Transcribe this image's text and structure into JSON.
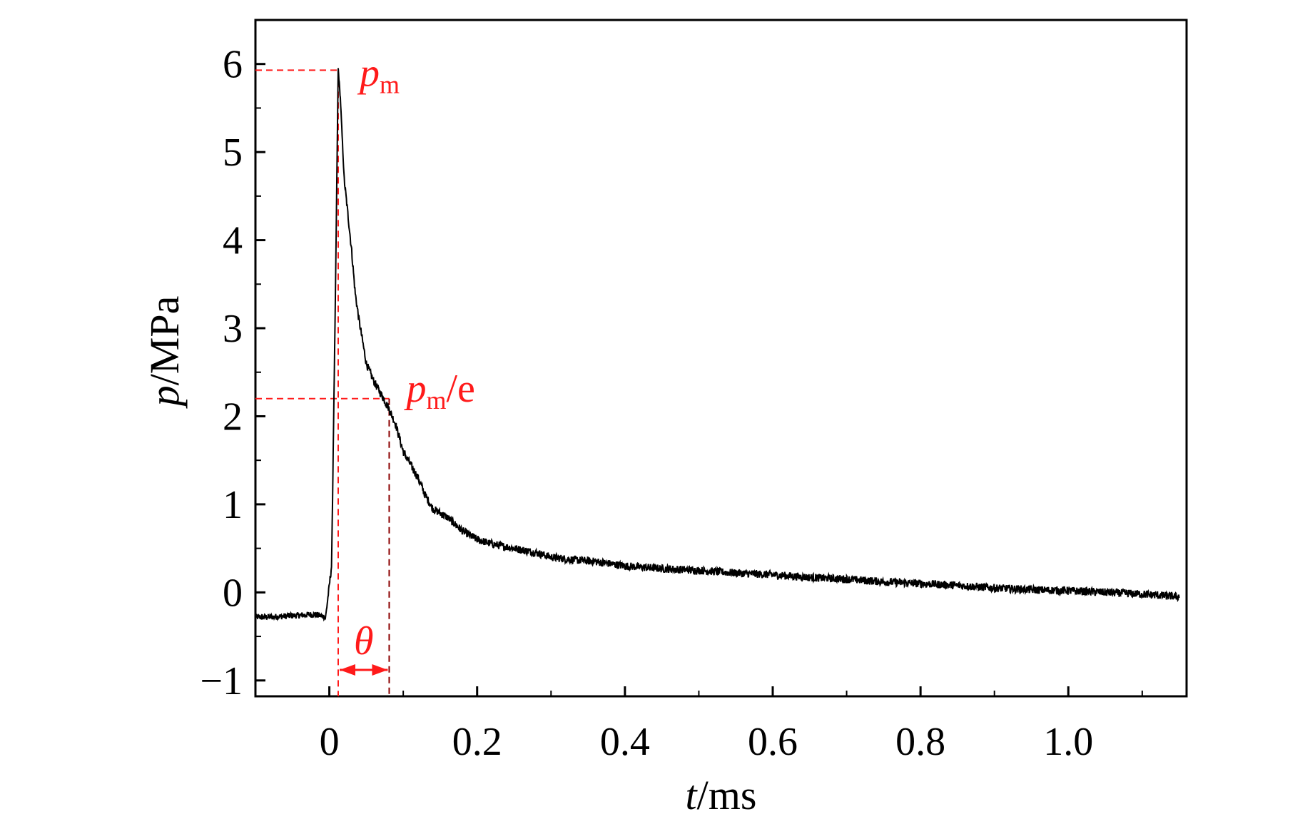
{
  "chart_data": {
    "type": "line",
    "title": "",
    "xlabel": {
      "var": "t",
      "unit": "/ms"
    },
    "ylabel": {
      "var": "p",
      "unit": "/MPa"
    },
    "xlim": [
      -0.1,
      1.16
    ],
    "ylim": [
      -1.18,
      6.5
    ],
    "grid": false,
    "x_ticks": [
      0,
      0.2,
      0.4,
      0.6,
      0.8,
      1.0
    ],
    "x_tick_labels": [
      "0",
      "0.2",
      "0.4",
      "0.6",
      "0.8",
      "1.0"
    ],
    "y_ticks": [
      -1,
      0,
      1,
      2,
      3,
      4,
      5,
      6
    ],
    "y_tick_labels": [
      "−1",
      "0",
      "1",
      "2",
      "3",
      "4",
      "5",
      "6"
    ],
    "series": [
      {
        "name": "pressure",
        "color": "#000000",
        "x": [
          -0.1,
          -0.08,
          -0.06,
          -0.04,
          -0.02,
          -0.005,
          0.003,
          0.008,
          0.012,
          0.015,
          0.02,
          0.025,
          0.03,
          0.035,
          0.04,
          0.05,
          0.06,
          0.07,
          0.08,
          0.09,
          0.1,
          0.11,
          0.12,
          0.13,
          0.14,
          0.15,
          0.16,
          0.18,
          0.2,
          0.22,
          0.25,
          0.28,
          0.3,
          0.33,
          0.36,
          0.4,
          0.45,
          0.5,
          0.55,
          0.6,
          0.65,
          0.7,
          0.75,
          0.8,
          0.85,
          0.9,
          0.95,
          1.0,
          1.05,
          1.1,
          1.15
        ],
        "y": [
          -0.28,
          -0.28,
          -0.27,
          -0.26,
          -0.25,
          -0.28,
          0.3,
          3.2,
          5.95,
          5.6,
          4.7,
          4.3,
          3.9,
          3.4,
          3.1,
          2.6,
          2.4,
          2.25,
          2.1,
          1.9,
          1.6,
          1.45,
          1.3,
          1.1,
          0.95,
          0.9,
          0.85,
          0.7,
          0.6,
          0.55,
          0.5,
          0.45,
          0.4,
          0.37,
          0.35,
          0.3,
          0.27,
          0.25,
          0.22,
          0.2,
          0.17,
          0.15,
          0.12,
          0.1,
          0.08,
          0.05,
          0.03,
          0.02,
          0.0,
          -0.02,
          -0.05
        ]
      }
    ],
    "annotations": {
      "color": "#ff1a1a",
      "pm": {
        "base": "p",
        "sub": "m",
        "value": 5.93,
        "t": 0.012
      },
      "pm_e": {
        "base": "p",
        "sub": "m",
        "suffix": "/e",
        "value": 2.2,
        "t": 0.081
      },
      "theta": {
        "label": "θ",
        "from": 0.012,
        "to": 0.081
      }
    }
  }
}
